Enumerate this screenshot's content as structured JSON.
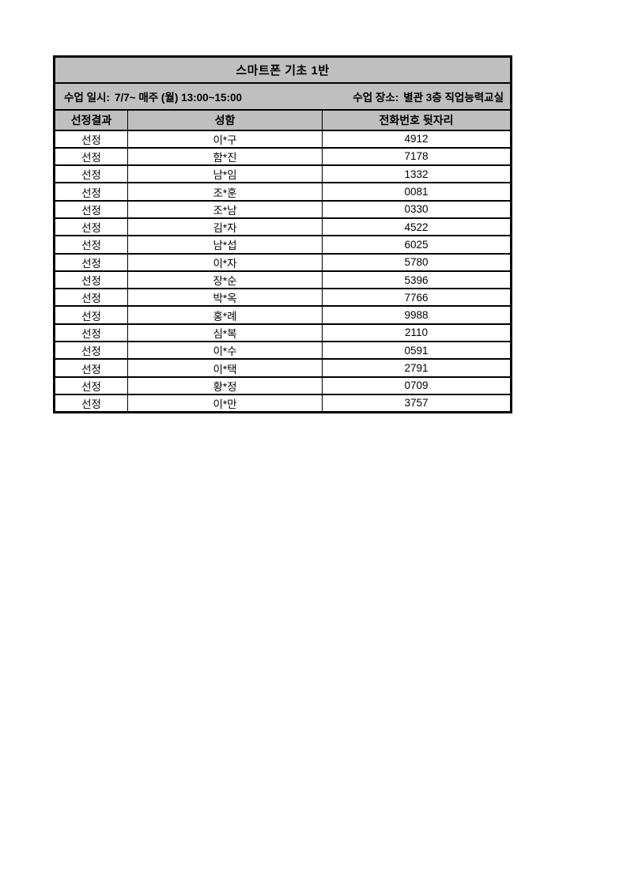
{
  "table": {
    "title": "스마트폰 기초 1반",
    "info": {
      "schedule_label": "수업 일시:",
      "schedule_value": "7/7~ 매주 (월) 13:00~15:00",
      "location_label": "수업 장소:",
      "location_value": "별관 3층 직업능력교실"
    },
    "columns": [
      "선정결과",
      "성함",
      "전화번호 뒷자리"
    ],
    "rows": [
      {
        "result": "선정",
        "name": "이*구",
        "phone": "4912"
      },
      {
        "result": "선정",
        "name": "함*진",
        "phone": "7178"
      },
      {
        "result": "선정",
        "name": "남*임",
        "phone": "1332"
      },
      {
        "result": "선정",
        "name": "조*훈",
        "phone": "0081"
      },
      {
        "result": "선정",
        "name": "조*남",
        "phone": "0330"
      },
      {
        "result": "선정",
        "name": "김*자",
        "phone": "4522"
      },
      {
        "result": "선정",
        "name": "남*섭",
        "phone": "6025"
      },
      {
        "result": "선정",
        "name": "이*자",
        "phone": "5780"
      },
      {
        "result": "선정",
        "name": "장*순",
        "phone": "5396"
      },
      {
        "result": "선정",
        "name": "박*옥",
        "phone": "7766"
      },
      {
        "result": "선정",
        "name": "홍*례",
        "phone": "9988"
      },
      {
        "result": "선정",
        "name": "심*복",
        "phone": "2110"
      },
      {
        "result": "선정",
        "name": "이*수",
        "phone": "0591"
      },
      {
        "result": "선정",
        "name": "이*택",
        "phone": "2791"
      },
      {
        "result": "선정",
        "name": "황*정",
        "phone": "0709"
      },
      {
        "result": "선정",
        "name": "이*만",
        "phone": "3757"
      }
    ],
    "colors": {
      "header_bg": "#bfbfbf",
      "border": "#000000",
      "row_bg": "#ffffff",
      "text": "#000000"
    }
  }
}
